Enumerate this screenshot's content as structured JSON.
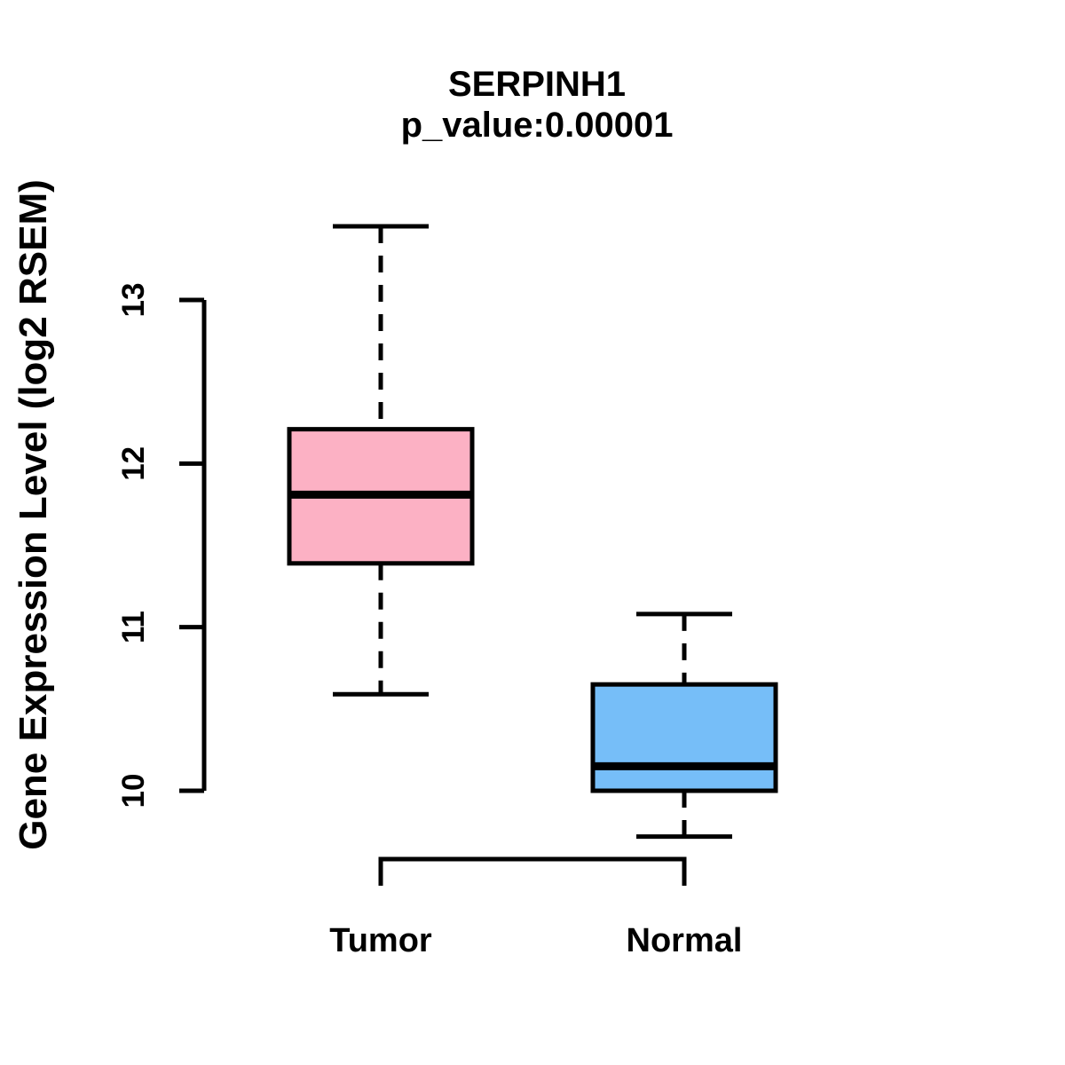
{
  "chart_data": {
    "type": "boxplot",
    "title": "SERPINH1",
    "subtitle": "p_value:0.00001",
    "ylabel": "Gene Expression Level (log2 RSEM)",
    "xlabel": "",
    "categories": [
      "Tumor",
      "Normal"
    ],
    "yticks": [
      "10",
      "11",
      "12",
      "13"
    ],
    "ylim": [
      9.5,
      13.6
    ],
    "grid": false,
    "legend": "none",
    "series": [
      {
        "name": "Tumor",
        "box_fill": "#FCB1C4",
        "whisker_low": 10.59,
        "q1": 11.39,
        "median": 11.81,
        "q3": 12.21,
        "whisker_high": 13.45
      },
      {
        "name": "Normal",
        "box_fill": "#76BEF8",
        "whisker_low": 9.72,
        "q1": 10.0,
        "median": 10.15,
        "q3": 10.65,
        "whisker_high": 11.08
      }
    ],
    "colors": {
      "stroke": "#000000",
      "background": "#FFFFFF"
    }
  }
}
